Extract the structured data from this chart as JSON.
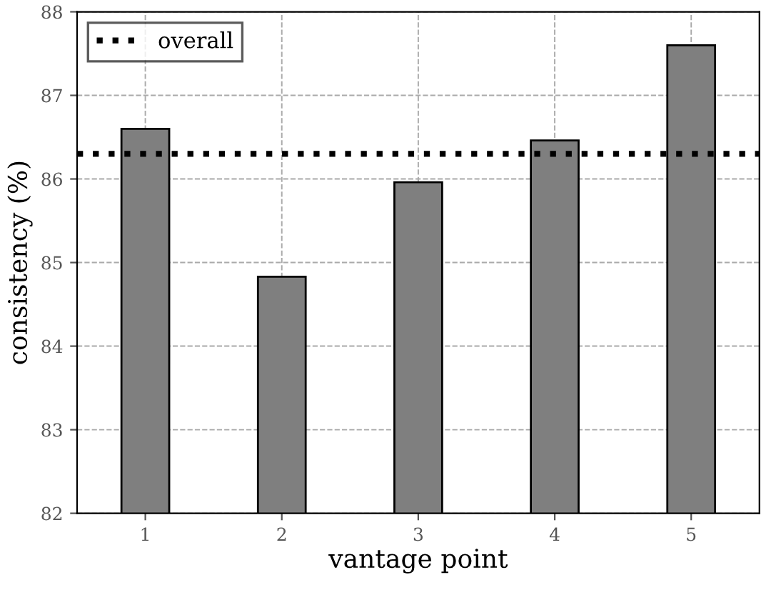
{
  "chart_data": {
    "type": "bar",
    "xlabel": "vantage point",
    "ylabel": "consistency (%)",
    "categories": [
      "1",
      "2",
      "3",
      "4",
      "5"
    ],
    "values": [
      86.6,
      84.83,
      85.96,
      86.46,
      87.6
    ],
    "color": "#7f7f7f",
    "ylim": [
      82,
      88
    ],
    "yticks": [
      82,
      83,
      84,
      85,
      86,
      87,
      88
    ],
    "ref_lines": [
      {
        "axis": "y",
        "value": 86.3,
        "label": "overall",
        "color": "#000000",
        "line_style": "dotted"
      }
    ],
    "grid": true,
    "legend": "top left"
  }
}
